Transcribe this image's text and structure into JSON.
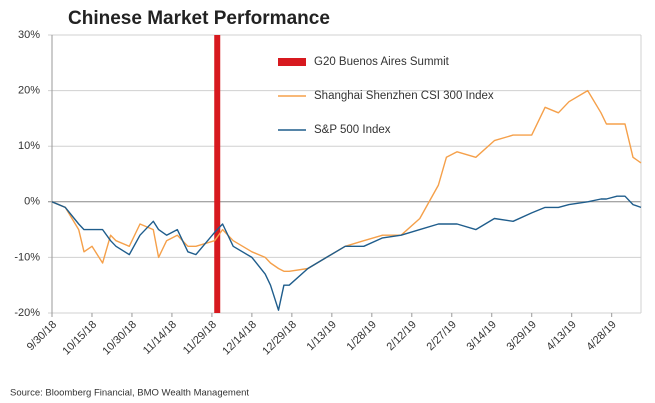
{
  "chart_data": {
    "type": "line",
    "title": "Chinese Market Performance",
    "source": "Source: Bloomberg Financial, BMO Wealth Management",
    "x": [
      "9/30/18",
      "10/5/18",
      "10/10/18",
      "10/12/18",
      "10/15/18",
      "10/19/18",
      "10/22/18",
      "10/24/18",
      "10/29/18",
      "11/2/18",
      "11/7/18",
      "11/9/18",
      "11/12/18",
      "11/16/18",
      "11/20/18",
      "11/23/18",
      "11/30/18",
      "12/3/18",
      "12/7/18",
      "12/14/18",
      "12/19/18",
      "12/21/18",
      "12/24/18",
      "12/26/18",
      "12/28/18",
      "1/4/19",
      "1/11/19",
      "1/18/19",
      "1/25/19",
      "2/1/19",
      "2/8/19",
      "2/15/19",
      "2/22/19",
      "2/25/19",
      "3/1/19",
      "3/8/19",
      "3/15/19",
      "3/22/19",
      "3/29/19",
      "4/3/19",
      "4/8/19",
      "4/12/19",
      "4/19/19",
      "4/24/19",
      "4/26/19",
      "4/30/19",
      "5/3/19",
      "5/6/19",
      "5/9/19"
    ],
    "series": [
      {
        "name": "Shanghai Shenzhen CSI 300 Index",
        "color": "#f5a04a",
        "values": [
          0,
          -1,
          -5,
          -9,
          -8,
          -11,
          -6,
          -7,
          -8,
          -4,
          -5,
          -10,
          -7,
          -6,
          -8,
          -8,
          -7,
          -5,
          -7,
          -9,
          -10,
          -11,
          -12,
          -12.5,
          -12.5,
          -12,
          -10,
          -8,
          -7,
          -6,
          -6,
          -3,
          3,
          8,
          9,
          8,
          11,
          12,
          12,
          17,
          16,
          18,
          20,
          16,
          14,
          14,
          14,
          8,
          7
        ]
      },
      {
        "name": "S&P 500 Index",
        "color": "#1f5d8c",
        "values": [
          0,
          -1,
          -4,
          -5,
          -5,
          -5,
          -7,
          -8,
          -9.5,
          -6,
          -3.5,
          -5,
          -6,
          -5,
          -9,
          -9.5,
          -5.5,
          -4,
          -8,
          -10,
          -13,
          -15,
          -19.5,
          -15,
          -15,
          -12,
          -10,
          -8,
          -8,
          -6.5,
          -6,
          -5,
          -4,
          -4,
          -4,
          -5,
          -3,
          -3.5,
          -2,
          -1,
          -1,
          -0.5,
          0,
          0.5,
          0.5,
          1,
          1,
          -0.5,
          -1
        ]
      }
    ],
    "events": [
      {
        "name": "G20 Buenos Aires Summit",
        "color": "#d7191f",
        "x": "12/1/18"
      }
    ],
    "xlim": [
      "9/30/18",
      "5/9/19"
    ],
    "xticks": [
      "9/30/18",
      "10/15/18",
      "10/30/18",
      "11/14/18",
      "11/29/18",
      "12/14/18",
      "12/29/18",
      "1/13/19",
      "1/28/19",
      "2/12/19",
      "2/27/19",
      "3/14/19",
      "3/29/19",
      "4/13/19",
      "4/28/19"
    ],
    "ylim": [
      -20,
      30
    ],
    "yticks": [
      {
        "value": -20,
        "label": "-20%"
      },
      {
        "value": -10,
        "label": "-10%"
      },
      {
        "value": 0,
        "label": "0%"
      },
      {
        "value": 10,
        "label": "10%"
      },
      {
        "value": 20,
        "label": "20%"
      },
      {
        "value": 30,
        "label": "30%"
      }
    ],
    "grid": true
  }
}
